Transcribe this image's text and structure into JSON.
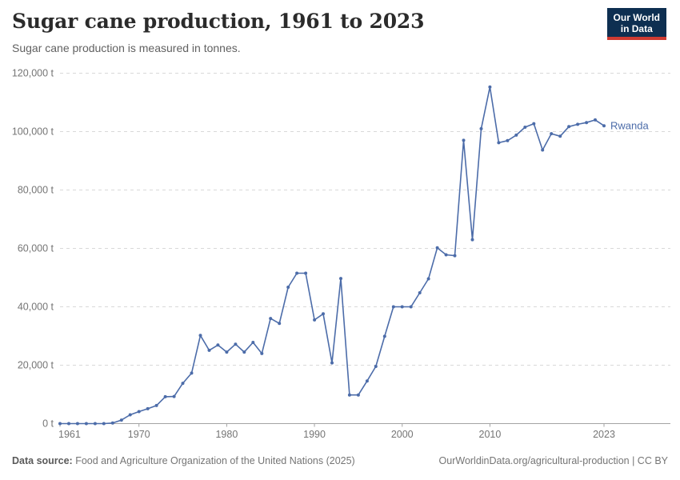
{
  "header": {
    "title": "Sugar cane production, 1961 to 2023",
    "subtitle": "Sugar cane production is measured in tonnes.",
    "logo": {
      "line1": "Our World",
      "line2": "in Data"
    }
  },
  "colors": {
    "line": "#4c6ca9",
    "grid": "#d9d9d9",
    "axis": "#a3a3a3",
    "tick_text": "#757575",
    "logo_bg": "#0e2f51",
    "logo_red": "#cf3b32"
  },
  "chart_data": {
    "type": "line",
    "title": "Sugar cane production, 1961 to 2023",
    "subtitle": "Sugar cane production is measured in tonnes.",
    "unit": "tonnes",
    "xlabel": "",
    "ylabel": "",
    "xlim": [
      1961,
      2023
    ],
    "ylim": [
      0,
      120000
    ],
    "x_ticks": [
      1961,
      1970,
      1980,
      1990,
      2000,
      2010,
      2023
    ],
    "y_ticks": [
      0,
      20000,
      40000,
      60000,
      80000,
      100000,
      120000
    ],
    "y_tick_suffix": " t",
    "grid": true,
    "legend_position": "line-end-label",
    "series": [
      {
        "name": "Rwanda",
        "color": "#4c6ca9",
        "x": [
          1961,
          1962,
          1963,
          1964,
          1965,
          1966,
          1967,
          1968,
          1969,
          1970,
          1971,
          1972,
          1973,
          1974,
          1975,
          1976,
          1977,
          1978,
          1979,
          1980,
          1981,
          1982,
          1983,
          1984,
          1985,
          1986,
          1987,
          1988,
          1989,
          1990,
          1991,
          1992,
          1993,
          1994,
          1995,
          1996,
          1997,
          1998,
          1999,
          2000,
          2001,
          2002,
          2003,
          2004,
          2005,
          2006,
          2007,
          2008,
          2009,
          2010,
          2011,
          2012,
          2013,
          2014,
          2015,
          2016,
          2017,
          2018,
          2019,
          2020,
          2021,
          2022,
          2023
        ],
        "values": [
          0,
          0,
          0,
          0,
          0,
          0,
          200,
          1200,
          3000,
          4100,
          5100,
          6200,
          9200,
          9300,
          13800,
          17300,
          30200,
          25100,
          26900,
          24500,
          27200,
          24500,
          27800,
          24000,
          36000,
          34300,
          46700,
          51500,
          51500,
          35500,
          37600,
          20800,
          49700,
          9800,
          9800,
          14600,
          19600,
          29900,
          40000,
          40000,
          40000,
          44800,
          49600,
          60200,
          57800,
          57500,
          97000,
          63000,
          101000,
          115300,
          96200,
          96900,
          98800,
          101500,
          102700,
          93700,
          99300,
          98400,
          101700,
          102500,
          103100,
          104000,
          102000
        ]
      }
    ]
  },
  "footer": {
    "source_label": "Data source:",
    "source_text": " Food and Agriculture Organization of the United Nations (2025)",
    "rights_text": "OurWorldinData.org/agricultural-production | CC BY"
  }
}
